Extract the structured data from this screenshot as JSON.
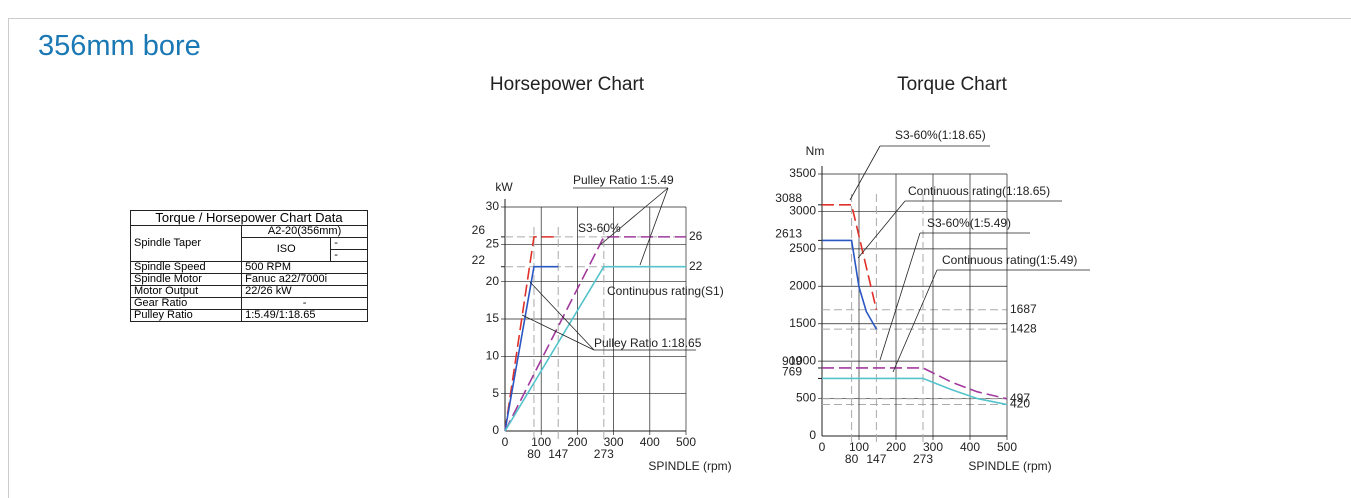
{
  "heading": "356mm bore",
  "table": {
    "title": "Torque / Horsepower Chart Data",
    "rows": [
      [
        "Spindle Taper",
        "A2-20(356mm)",
        "ISO",
        "-",
        "-"
      ],
      [
        "Spindle Speed",
        "500 RPM"
      ],
      [
        "Spindle Motor",
        "Fanuc a22/7000i"
      ],
      [
        "Motor Output",
        "22/26 kW"
      ],
      [
        "Gear Ratio",
        "-"
      ],
      [
        "Pulley Ratio",
        "1:5.49/1:18.65"
      ]
    ]
  },
  "chart_data": [
    {
      "type": "line",
      "title": "Horsepower Chart",
      "y_label": "kW",
      "x_label": "SPINDLE (rpm)",
      "xlim": [
        0,
        500
      ],
      "ylim": [
        0,
        30
      ],
      "xticks": [
        0,
        100,
        200,
        300,
        400,
        500
      ],
      "xticks_extra": [
        80,
        147,
        273
      ],
      "yticks": [
        0,
        5,
        10,
        15,
        20,
        25,
        30
      ],
      "yticks_extra": [
        22,
        26
      ],
      "right_labels": [
        26,
        22
      ],
      "grid": true,
      "series": [
        {
          "color": "#e0302a",
          "dashed": true,
          "x": [
            0,
            80,
            147
          ],
          "values": [
            0,
            26,
            26
          ]
        },
        {
          "color": "#2a57c4",
          "dashed": false,
          "x": [
            0,
            80,
            147
          ],
          "values": [
            0,
            22,
            22
          ]
        },
        {
          "color": "#a23a9e",
          "dashed": true,
          "x": [
            0,
            273,
            500
          ],
          "values": [
            0,
            26,
            26
          ]
        },
        {
          "color": "#55c3cc",
          "dashed": false,
          "x": [
            0,
            273,
            500
          ],
          "values": [
            0,
            22,
            22
          ]
        }
      ],
      "annotations": [
        "Pulley Ratio 1:5.49",
        "S3-60%",
        "Continuous rating(S1)",
        "Pulley Ratio 1:18.65"
      ]
    },
    {
      "type": "line",
      "title": "Torque Chart",
      "y_label": "Nm",
      "x_label": "SPINDLE (rpm)",
      "xlim": [
        0,
        500
      ],
      "ylim": [
        0,
        3500
      ],
      "xticks": [
        0,
        100,
        200,
        300,
        400,
        500
      ],
      "xticks_extra": [
        80,
        147,
        273
      ],
      "yticks": [
        0,
        500,
        1000,
        1500,
        2000,
        2500,
        3000,
        3500
      ],
      "yticks_extra": [
        3088,
        2613,
        909,
        769
      ],
      "right_labels": [
        1687,
        1428,
        497,
        420
      ],
      "grid": true,
      "series": [
        {
          "color": "#e0302a",
          "dashed": true,
          "x": [
            0,
            80,
            147
          ],
          "values": [
            3088,
            3088,
            1687
          ]
        },
        {
          "color": "#2a57c4",
          "dashed": false,
          "x": [
            0,
            80,
            100,
            120,
            147
          ],
          "values": [
            2613,
            2613,
            1990,
            1660,
            1428
          ]
        },
        {
          "color": "#a23a9e",
          "dashed": true,
          "x": [
            0,
            273,
            350,
            420,
            500
          ],
          "values": [
            909,
            909,
            720,
            590,
            497
          ]
        },
        {
          "color": "#55c3cc",
          "dashed": false,
          "x": [
            0,
            273,
            350,
            420,
            500
          ],
          "values": [
            769,
            769,
            620,
            500,
            420
          ]
        }
      ],
      "annotations": [
        "S3-60%(1:18.65)",
        "Continuous rating(1:18.65)",
        "S3-60%(1:5.49)",
        "Continuous rating(1:5.49)"
      ]
    }
  ]
}
